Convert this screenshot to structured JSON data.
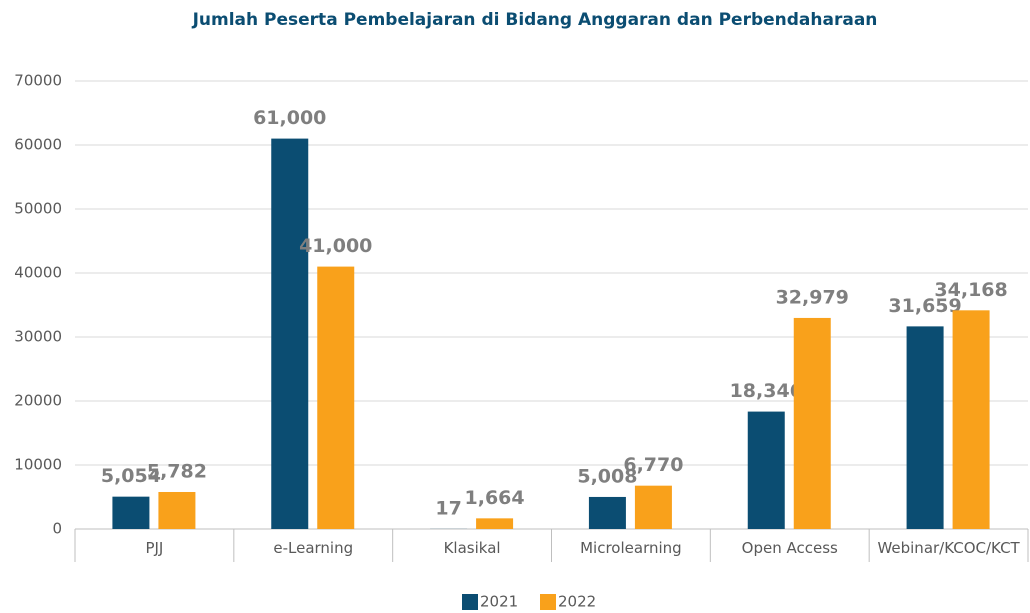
{
  "chart_data": {
    "type": "bar",
    "title": "Jumlah Peserta Pembelajaran di Bidang Anggaran dan Perbendaharaan",
    "categories": [
      "PJJ",
      "e-Learning",
      "Klasikal",
      "Microlearning",
      "Open Access",
      "Webinar/KCOC/KCT"
    ],
    "series": [
      {
        "name": "2021",
        "color": "#0b4d72",
        "values": [
          5054,
          61000,
          17,
          5008,
          18346,
          31659
        ],
        "value_labels": [
          "5,054",
          "61,000",
          "17",
          "5,008",
          "18,346",
          "31,659"
        ]
      },
      {
        "name": "2022",
        "color": "#f9a11b",
        "values": [
          5782,
          41000,
          1664,
          6770,
          32979,
          34168
        ],
        "value_labels": [
          "5,782",
          "41,000",
          "1,664",
          "6,770",
          "32,979",
          "34,168"
        ]
      }
    ],
    "ylim": [
      0,
      70000
    ],
    "yticks": [
      0,
      10000,
      20000,
      30000,
      40000,
      50000,
      60000,
      70000
    ],
    "grid": true,
    "legend": "bottom"
  }
}
